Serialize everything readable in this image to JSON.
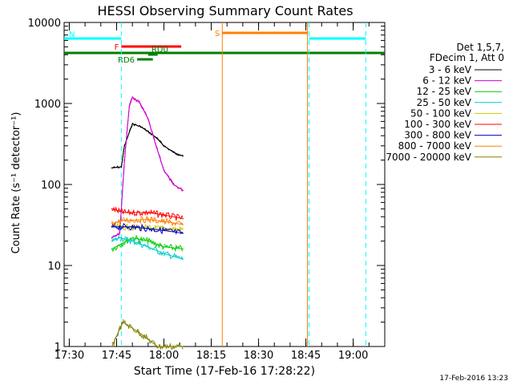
{
  "chart_data": {
    "type": "line",
    "title": "HESSI Observing Summary Count Rates",
    "xlabel": "Start Time (17-Feb-16 17:28:22)",
    "ylabel": "Count Rate (s⁻¹ detector⁻¹)",
    "y_scale": "log",
    "xlim": [
      "17:28:22",
      "19:10:00"
    ],
    "ylim": [
      1,
      10000
    ],
    "x_ticks": [
      "17:30",
      "17:45",
      "18:00",
      "18:15",
      "18:30",
      "18:45",
      "19:00"
    ],
    "y_ticks": [
      "1",
      "10",
      "100",
      "1000",
      "10000"
    ],
    "legend_title": [
      "Det 1,5,7,",
      "FDecim 1, Att 0"
    ],
    "legend_position": "right",
    "timestamp": "17-Feb-2016 13:23",
    "series": [
      {
        "name": "3 - 6 keV",
        "color": "#000000",
        "x": [
          "17:43:30",
          "17:46:30",
          "17:47:30",
          "17:50:00",
          "17:52:30",
          "17:55:00",
          "17:57:30",
          "18:00:00",
          "18:03:00",
          "18:06:00"
        ],
        "values": [
          160,
          165,
          300,
          560,
          520,
          450,
          380,
          300,
          250,
          225
        ]
      },
      {
        "name": "6 - 12 keV",
        "color": "#cc00cc",
        "x": [
          "17:43:30",
          "17:46:00",
          "17:47:30",
          "17:49:00",
          "17:50:00",
          "17:52:30",
          "17:55:00",
          "17:57:30",
          "18:00:00",
          "18:03:00",
          "18:06:00"
        ],
        "values": [
          22,
          25,
          200,
          900,
          1200,
          1000,
          640,
          300,
          150,
          100,
          85
        ]
      },
      {
        "name": "12 - 25 keV",
        "color": "#00cc00",
        "x": [
          "17:43:30",
          "17:46:00",
          "17:50:00",
          "17:55:00",
          "18:00:00",
          "18:06:00"
        ],
        "values": [
          16,
          18,
          22,
          20,
          17,
          16
        ]
      },
      {
        "name": "25 - 50 keV",
        "color": "#00cccc",
        "x": [
          "17:43:30",
          "17:46:00",
          "17:50:00",
          "17:55:00",
          "18:00:00",
          "18:06:00"
        ],
        "values": [
          20,
          22,
          20,
          17,
          14,
          12
        ]
      },
      {
        "name": "50 - 100 keV",
        "color": "#cccc00",
        "x": [
          "17:43:30",
          "18:06:00"
        ],
        "values": [
          30,
          28
        ]
      },
      {
        "name": "100 - 300 keV",
        "color": "#ff0000",
        "x": [
          "17:43:30",
          "17:47:00",
          "17:55:00",
          "18:00:00",
          "18:06:00"
        ],
        "values": [
          50,
          45,
          45,
          42,
          38
        ]
      },
      {
        "name": "300 - 800 keV",
        "color": "#0000cc",
        "x": [
          "17:43:30",
          "17:50:00",
          "18:00:00",
          "18:06:00"
        ],
        "values": [
          30,
          30,
          27,
          25
        ]
      },
      {
        "name": "800 - 7000 keV",
        "color": "#ff8000",
        "x": [
          "17:43:30",
          "17:47:00",
          "17:55:00",
          "18:00:00",
          "18:06:00"
        ],
        "values": [
          33,
          36,
          37,
          35,
          32
        ]
      },
      {
        "name": "7000 - 20000 keV",
        "color": "#808000",
        "x": [
          "17:43:30",
          "17:47:00",
          "17:52:00",
          "17:58:00",
          "18:06:00"
        ],
        "values": [
          1,
          2,
          1.5,
          1,
          1
        ]
      }
    ],
    "flag_bars": [
      {
        "label": "N",
        "color": "#00ffff",
        "segments": [
          [
            "17:28:22",
            "17:46:30"
          ],
          [
            "18:46:00",
            "19:04:00"
          ]
        ]
      },
      {
        "label": "S",
        "color": "#ff8000",
        "segments": [
          [
            "18:18:30",
            "18:45:30"
          ]
        ]
      },
      {
        "label": "F",
        "color": "#ff0000",
        "segments": [
          [
            "17:46:30",
            "18:05:30"
          ]
        ]
      },
      {
        "label": "RD0",
        "color": "#008000",
        "segments": [
          [
            "17:55:00",
            "17:58:00"
          ]
        ]
      },
      {
        "label": "RD6",
        "color": "#008000",
        "segments": [
          [
            "17:51:30",
            "17:56:30"
          ]
        ]
      },
      {
        "label": "",
        "color": "#008000",
        "segments": [
          [
            "17:28:22",
            "19:10:00"
          ]
        ]
      }
    ],
    "vertical_lines": [
      {
        "x": "17:46:30",
        "color": "#00ffff",
        "style": "dashed"
      },
      {
        "x": "18:46:00",
        "color": "#00ffff",
        "style": "dashed"
      },
      {
        "x": "19:04:00",
        "color": "#00ffff",
        "style": "dashed"
      },
      {
        "x": "18:18:30",
        "color": "#ff8000",
        "style": "solid"
      },
      {
        "x": "18:45:30",
        "color": "#ff8000",
        "style": "solid"
      }
    ]
  }
}
